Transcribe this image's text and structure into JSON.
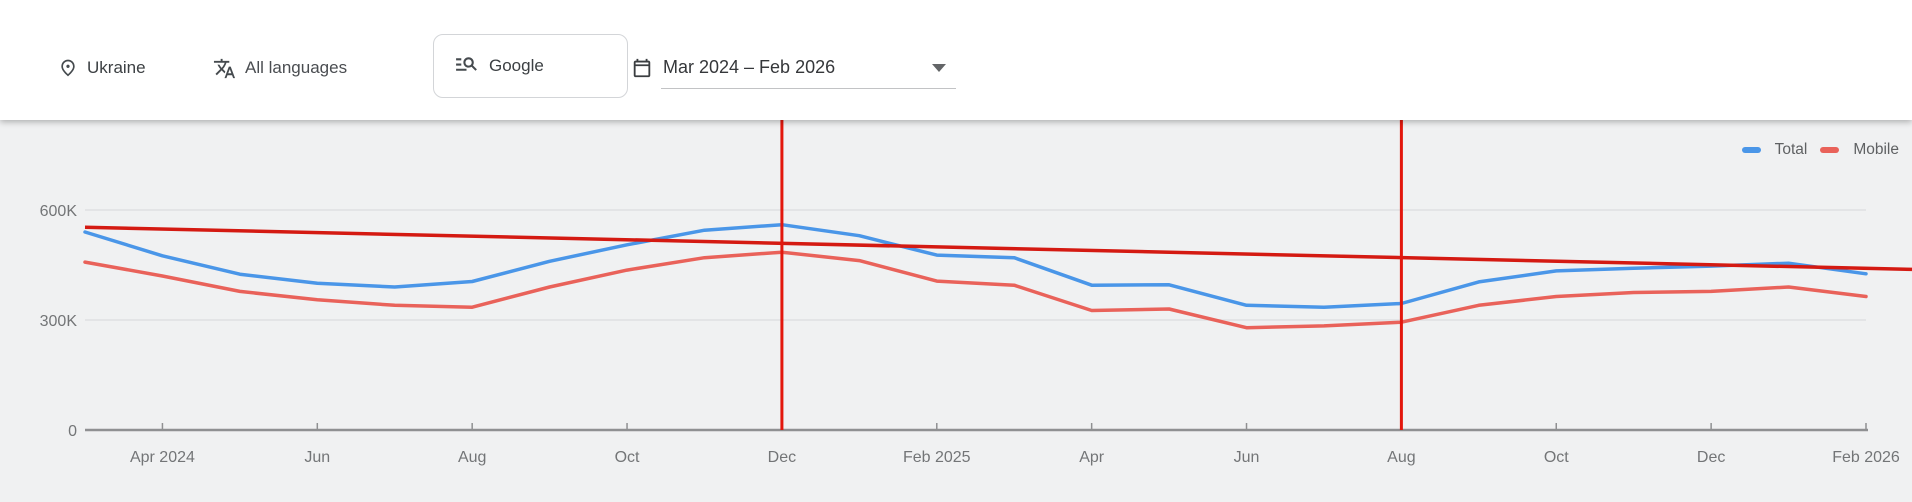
{
  "toolbar": {
    "location": {
      "icon": "location-pin-icon",
      "label": "Ukraine"
    },
    "language": {
      "icon": "translate-icon",
      "label": "All languages"
    },
    "engine": {
      "icon": "search-list-icon",
      "label": "Google"
    },
    "date_range": {
      "icon": "calendar-icon",
      "label": "Mar 2024 – Feb 2026"
    }
  },
  "chart_data": {
    "type": "line",
    "title": "",
    "xlabel": "",
    "ylabel": "",
    "x": [
      "Mar 2024",
      "Apr 2024",
      "May 2024",
      "Jun 2024",
      "Jul 2024",
      "Aug 2024",
      "Sep 2024",
      "Oct 2024",
      "Nov 2024",
      "Dec 2024",
      "Jan 2025",
      "Feb 2025",
      "Mar 2025",
      "Apr 2025",
      "May 2025",
      "Jun 2025",
      "Jul 2025",
      "Aug 2025",
      "Sep 2025",
      "Oct 2025",
      "Nov 2025",
      "Dec 2025",
      "Jan 2026",
      "Feb 2026"
    ],
    "series": [
      {
        "name": "Total",
        "color": "#4a96e8",
        "values": [
          540000,
          475000,
          425000,
          400000,
          390000,
          405000,
          460000,
          505000,
          545000,
          560000,
          530000,
          477000,
          470000,
          395000,
          396000,
          340000,
          335000,
          345000,
          404000,
          434000,
          441000,
          447000,
          455000,
          426000
        ]
      },
      {
        "name": "Mobile",
        "color": "#e9625a",
        "values": [
          458000,
          420000,
          378000,
          355000,
          340000,
          335000,
          390000,
          436000,
          470000,
          485000,
          462000,
          406000,
          395000,
          326000,
          330000,
          279000,
          284000,
          294000,
          340000,
          364000,
          375000,
          378000,
          390000,
          364000
        ]
      }
    ],
    "trendline": {
      "color": "#d41a12",
      "start_value": 553000,
      "end_value": 438000,
      "description": "straight declining red annotation line spanning full chart width"
    },
    "vertical_markers": [
      {
        "x": "Dec 2024",
        "color": "#e3170d"
      },
      {
        "x": "Aug 2025",
        "color": "#e3170d"
      }
    ],
    "x_ticks": [
      {
        "label": "Apr 2024",
        "month_index": 1
      },
      {
        "label": "Jun",
        "month_index": 3
      },
      {
        "label": "Aug",
        "month_index": 5
      },
      {
        "label": "Oct",
        "month_index": 7
      },
      {
        "label": "Dec",
        "month_index": 9
      },
      {
        "label": "Feb 2025",
        "month_index": 11
      },
      {
        "label": "Apr",
        "month_index": 13
      },
      {
        "label": "Jun",
        "month_index": 15
      },
      {
        "label": "Aug",
        "month_index": 17
      },
      {
        "label": "Oct",
        "month_index": 19
      },
      {
        "label": "Dec",
        "month_index": 21
      },
      {
        "label": "Feb 2026",
        "month_index": 23
      }
    ],
    "y_ticks": [
      {
        "label": "0",
        "value": 0
      },
      {
        "label": "300K",
        "value": 300000
      },
      {
        "label": "600K",
        "value": 600000
      }
    ],
    "ylim": [
      0,
      600000
    ],
    "grid": "horizontal",
    "legend_position": "top-right"
  },
  "colors": {
    "background": "#f0f1f2",
    "toolbar_background": "#ffffff",
    "gridline": "#e3e4e6",
    "axis": "#8f9092",
    "axis_text": "#737577",
    "total_line": "#4a96e8",
    "mobile_line": "#e9625a",
    "annotation_red": "#d41a12"
  }
}
